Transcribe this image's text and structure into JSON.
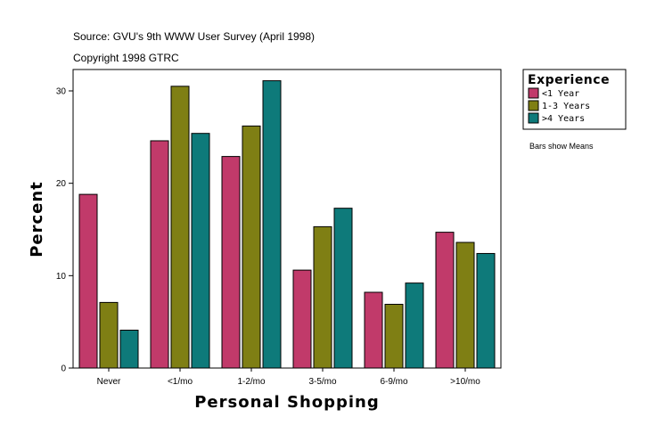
{
  "source_line": "Source: GVU's 9th WWW User Survey (April 1998)",
  "copyright_line": "Copyright 1998 GTRC",
  "note": "Bars show Means",
  "chart_data": {
    "type": "bar",
    "xlabel": "Personal Shopping",
    "ylabel": "Percent",
    "ylim": [
      0,
      32
    ],
    "yticks": [
      0,
      10,
      20,
      30
    ],
    "categories": [
      "Never",
      "<1/mo",
      "1-2/mo",
      "3-5/mo",
      "6-9/mo",
      ">10/mo"
    ],
    "legend": {
      "title": "Experience",
      "placement": "top-right, outside plot"
    },
    "series": [
      {
        "name": "<1 Year",
        "color": "#c13a6a",
        "values": [
          18.8,
          24.6,
          22.9,
          10.6,
          8.2,
          14.7
        ]
      },
      {
        "name": "1-3 Years",
        "color": "#7f7f14",
        "values": [
          7.1,
          30.5,
          26.2,
          15.3,
          6.9,
          13.6
        ]
      },
      {
        "name": ">4 Years",
        "color": "#0e7a7a",
        "values": [
          4.1,
          25.4,
          31.1,
          17.3,
          9.2,
          12.4
        ]
      }
    ],
    "grid": false
  }
}
